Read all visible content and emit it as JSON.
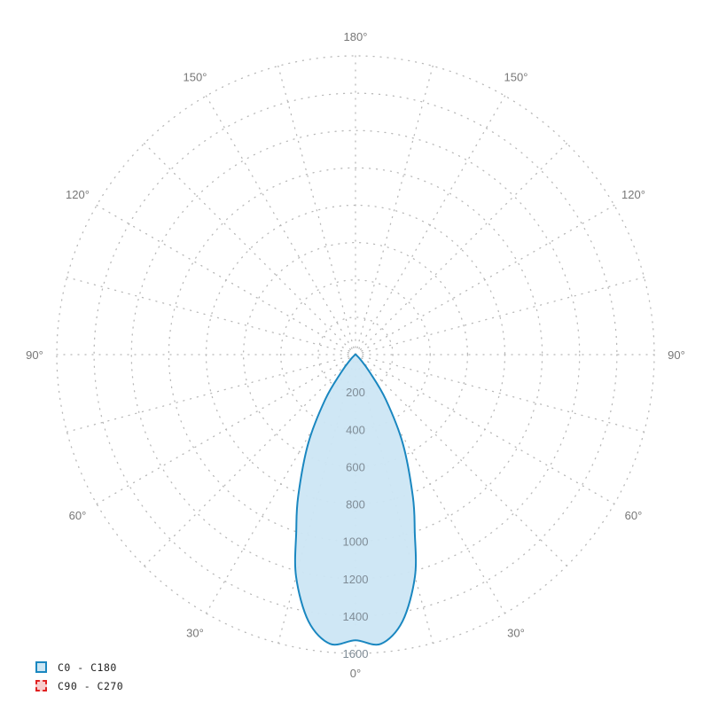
{
  "chart_data": {
    "type": "polar",
    "angle_labels": [
      "0°",
      "30°",
      "60°",
      "90°",
      "120°",
      "150°",
      "180°"
    ],
    "radial_ticks": [
      200,
      400,
      600,
      800,
      1000,
      1200,
      1400,
      1600
    ],
    "radial_range": [
      0,
      1600
    ],
    "grid": true,
    "legend_position": "bottom-left",
    "series": [
      {
        "name": "C0 - C180",
        "color": "#1a87c0",
        "fill": "#cce6f4",
        "angles": [
          0,
          5,
          10,
          15,
          18.5,
          22,
          28,
          34,
          39,
          45,
          60,
          90
        ],
        "values": [
          1530,
          1555,
          1450,
          1230,
          1000,
          820,
          540,
          290,
          120,
          40,
          5,
          0
        ]
      },
      {
        "name": "C90 - C270",
        "color": "#e02020",
        "fill": "#f8cccc",
        "angles": [],
        "values": []
      }
    ]
  }
}
